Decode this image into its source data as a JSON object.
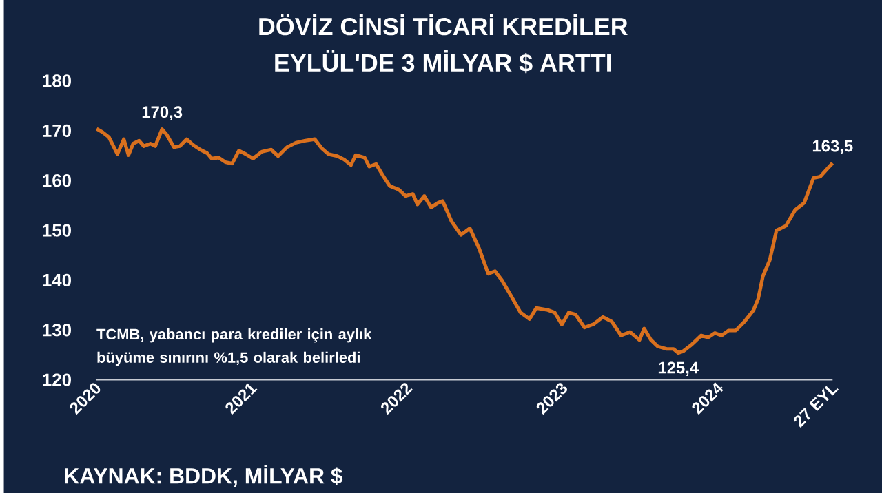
{
  "chart_data": {
    "type": "line",
    "title": "DÖVİZ CİNSİ TİCARİ KREDİLER",
    "subtitle": "EYLÜL'DE 3 MİLYAR $ ARTTI",
    "xlim": [
      "2020-01-01",
      "2024-09-27"
    ],
    "ylim": [
      120,
      180
    ],
    "yticks": [
      120,
      130,
      140,
      150,
      160,
      170,
      180
    ],
    "xticks": [
      {
        "value": "2020-01-01",
        "label": "2020"
      },
      {
        "value": "2021-01-01",
        "label": "2021"
      },
      {
        "value": "2022-01-01",
        "label": "2022"
      },
      {
        "value": "2023-01-01",
        "label": "2023"
      },
      {
        "value": "2024-01-01",
        "label": "2024"
      },
      {
        "value": "2024-09-27",
        "label": "27 EYL"
      }
    ],
    "x": [
      "2020-01-03",
      "2020-01-17",
      "2020-02-01",
      "2020-02-21",
      "2020-03-07",
      "2020-03-18",
      "2020-03-29",
      "2020-04-12",
      "2020-04-23",
      "2020-05-09",
      "2020-05-20",
      "2020-06-05",
      "2020-06-16",
      "2020-07-03",
      "2020-07-17",
      "2020-08-02",
      "2020-08-18",
      "2020-09-03",
      "2020-09-19",
      "2020-09-30",
      "2020-10-16",
      "2020-11-01",
      "2020-11-17",
      "2020-12-03",
      "2020-12-19",
      "2021-01-05",
      "2021-01-26",
      "2021-02-17",
      "2021-03-05",
      "2021-03-26",
      "2021-04-16",
      "2021-05-08",
      "2021-05-30",
      "2021-06-15",
      "2021-07-01",
      "2021-07-22",
      "2021-08-07",
      "2021-08-23",
      "2021-09-03",
      "2021-09-24",
      "2021-10-05",
      "2021-10-21",
      "2021-11-06",
      "2021-11-22",
      "2021-12-13",
      "2021-12-29",
      "2022-01-15",
      "2022-01-26",
      "2022-02-11",
      "2022-02-27",
      "2022-03-15",
      "2022-03-26",
      "2022-04-16",
      "2022-05-08",
      "2022-05-29",
      "2022-06-20",
      "2022-07-11",
      "2022-07-27",
      "2022-08-12",
      "2022-09-03",
      "2022-09-25",
      "2022-10-16",
      "2022-11-01",
      "2022-11-28",
      "2022-12-14",
      "2022-12-31",
      "2023-01-16",
      "2023-02-01",
      "2023-02-22",
      "2023-03-16",
      "2023-04-06",
      "2023-04-27",
      "2023-05-19",
      "2023-06-09",
      "2023-07-01",
      "2023-07-12",
      "2023-07-28",
      "2023-08-13",
      "2023-09-03",
      "2023-09-19",
      "2023-09-30",
      "2023-10-11",
      "2023-11-01",
      "2023-11-23",
      "2023-12-09",
      "2023-12-25",
      "2024-01-10",
      "2024-01-26",
      "2024-02-12",
      "2024-03-04",
      "2024-03-25",
      "2024-04-05",
      "2024-04-16",
      "2024-05-02",
      "2024-05-18",
      "2024-06-09",
      "2024-07-01",
      "2024-07-22",
      "2024-08-13",
      "2024-08-29",
      "2024-09-14",
      "2024-09-27"
    ],
    "series": [
      {
        "color": "#d9701e",
        "values": [
          170.4,
          169.7,
          168.7,
          165.3,
          168.3,
          165.1,
          167.4,
          168.0,
          166.9,
          167.4,
          166.9,
          170.3,
          169.2,
          166.7,
          166.9,
          168.3,
          167.1,
          166.2,
          165.5,
          164.4,
          164.6,
          163.7,
          163.4,
          166.0,
          165.3,
          164.4,
          165.8,
          166.2,
          164.9,
          166.7,
          167.6,
          168.0,
          168.3,
          166.5,
          165.3,
          164.9,
          164.2,
          163.1,
          165.1,
          164.6,
          162.8,
          163.3,
          161.0,
          158.9,
          158.2,
          156.9,
          157.3,
          155.2,
          156.9,
          154.6,
          155.5,
          155.9,
          151.8,
          149.1,
          150.4,
          146.3,
          141.3,
          141.8,
          140.0,
          136.8,
          133.5,
          132.2,
          134.4,
          134.0,
          133.5,
          131.1,
          133.5,
          133.1,
          130.5,
          131.2,
          132.6,
          131.7,
          128.9,
          129.6,
          128.0,
          130.3,
          128.0,
          126.7,
          126.2,
          126.2,
          125.4,
          125.7,
          127.1,
          128.9,
          128.5,
          129.4,
          128.9,
          129.9,
          129.9,
          131.7,
          134.0,
          136.3,
          140.8,
          144.0,
          150.0,
          150.9,
          154.1,
          155.5,
          160.5,
          160.8,
          162.3,
          163.5
        ]
      }
    ],
    "annotations": [
      {
        "text": "170,3",
        "x": "2020-06-05",
        "y": 170.3
      },
      {
        "text": "125,4",
        "x": "2023-09-30",
        "y": 125.4
      },
      {
        "text": "163,5",
        "x": "2024-09-27",
        "y": 163.5
      },
      "TCMB, yabancı para krediler için aylık büyüme sınırını %1,5 olarak belirledi",
      "KAYNAK: BDDK, MİLYAR $"
    ]
  }
}
